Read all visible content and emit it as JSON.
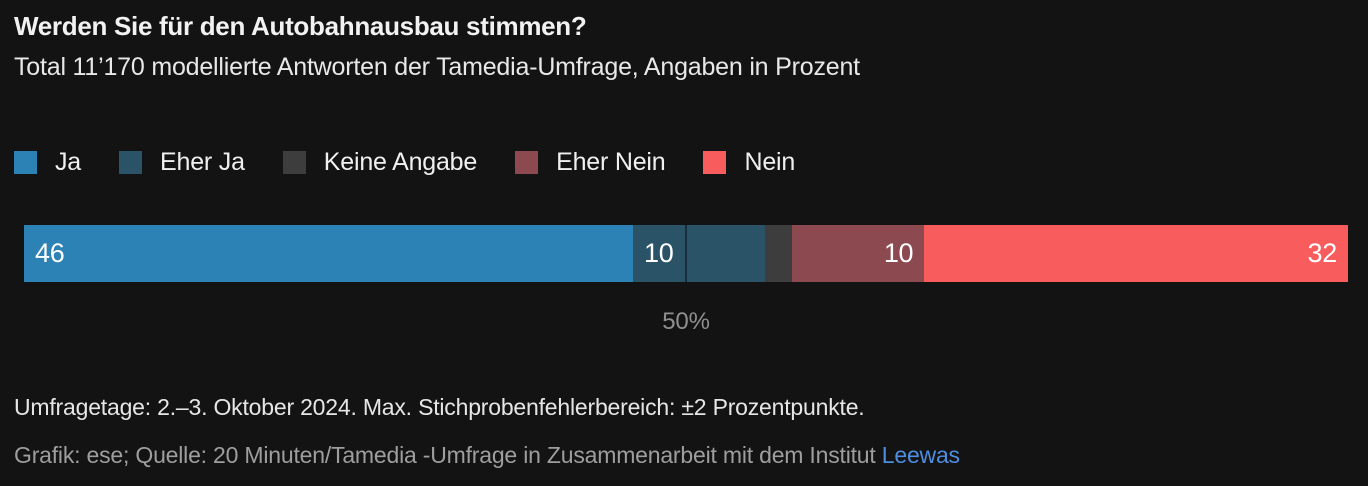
{
  "header": {
    "title": "Werden Sie für den Autobahnausbau stimmen?",
    "subtitle": "Total 11’170 modellierte Antworten der Tamedia-Umfrage, Angaben in Prozent"
  },
  "chart_data": {
    "type": "bar",
    "variant": "horizontal-stacked",
    "title": "Werden Sie für den Autobahnausbau stimmen?",
    "unit": "Prozent",
    "total_responses": "11’170",
    "categories": [
      "Ja",
      "Eher Ja",
      "Keine Angabe",
      "Eher Nein",
      "Nein"
    ],
    "values": [
      46,
      10,
      2,
      10,
      32
    ],
    "labels": [
      "46",
      "10",
      "",
      "10",
      "32"
    ],
    "label_align": [
      "left",
      "left",
      "none",
      "right",
      "right"
    ],
    "colors": [
      "#2d82b5",
      "#2b5368",
      "#3d3d3d",
      "#8d4950",
      "#f85c5c"
    ],
    "xlim": [
      0,
      100
    ],
    "gridline": {
      "value": 50,
      "label": "50%"
    },
    "legend_position": "top",
    "legend_entries": [
      "Ja",
      "Eher Ja",
      "Keine Angabe",
      "Eher Nein",
      "Nein"
    ]
  },
  "footer": {
    "notes": "Umfragetage: 2.–3. Oktober 2024. Max. Stichprobenfehlerbereich: ±2 Prozentpunkte.",
    "credit_prefix": "Grafik: ese; Quelle: 20 Minuten/Tamedia -Umfrage in Zusammenarbeit mit dem Institut ",
    "credit_link_label": "Leewas"
  },
  "colors": {
    "background": "#131313",
    "bar_value_label": "#ffffff",
    "tick_label": "#8f8f8f",
    "link": "#4d8de0"
  }
}
